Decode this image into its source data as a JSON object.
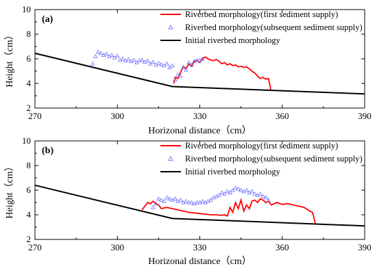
{
  "chart_data": [
    {
      "type": "line",
      "panel_label": "(a)",
      "xlabel": "Horizonal distance（cm）",
      "ylabel": "Height（cm）",
      "xlim": [
        270,
        390
      ],
      "ylim": [
        2,
        10
      ],
      "xticks": [
        270,
        300,
        330,
        360,
        390
      ],
      "yticks": [
        2,
        4,
        6,
        8,
        10
      ],
      "legend_position": "top-right",
      "series": [
        {
          "name": "Riverbed morphology(first sediment supply)",
          "style": "line",
          "color": "#ff0000",
          "x": [
            320.5,
            321,
            322,
            323,
            324,
            325,
            326,
            327,
            328,
            329,
            330,
            331,
            332,
            333,
            334,
            335,
            336,
            337,
            338,
            339,
            340,
            341,
            342,
            343,
            344,
            345,
            346,
            347,
            348,
            349,
            350,
            351,
            352,
            353,
            354,
            355,
            355.5,
            355.8
          ],
          "y": [
            4.0,
            4.5,
            4.4,
            4.9,
            5.4,
            5.2,
            5.6,
            5.4,
            5.8,
            5.9,
            5.7,
            6.0,
            6.15,
            6.0,
            5.9,
            5.85,
            5.95,
            5.8,
            5.6,
            5.7,
            5.5,
            5.6,
            5.45,
            5.5,
            5.35,
            5.4,
            5.3,
            5.35,
            5.2,
            5.0,
            4.85,
            4.6,
            4.4,
            4.5,
            4.35,
            4.4,
            3.9,
            3.5
          ]
        },
        {
          "name": "Riverbed morphology(subsequent sediment supply)",
          "style": "triangle-markers",
          "color": "#7070ff",
          "x": [
            291,
            292,
            293,
            294,
            295,
            296,
            297,
            298,
            299,
            300,
            301,
            302,
            303,
            304,
            305,
            306,
            307,
            308,
            309,
            310,
            311,
            312,
            313,
            314,
            315,
            316,
            317,
            318,
            319,
            320,
            321,
            322,
            323,
            324,
            325,
            326,
            327,
            328,
            329,
            330,
            331
          ],
          "y": [
            5.6,
            6.2,
            6.55,
            6.45,
            6.3,
            6.4,
            6.2,
            6.3,
            6.1,
            6.25,
            5.9,
            6.0,
            5.85,
            5.95,
            5.8,
            5.9,
            5.7,
            5.85,
            5.9,
            5.75,
            5.85,
            5.6,
            5.75,
            5.5,
            5.65,
            5.55,
            5.45,
            5.6,
            5.3,
            5.45,
            4.3,
            4.7,
            4.6,
            5.3,
            5.1,
            5.7,
            5.5,
            5.8,
            5.85,
            5.9,
            6.0
          ]
        },
        {
          "name": "Initial riverbed morphology",
          "style": "line",
          "color": "#000000",
          "x": [
            270,
            320,
            390
          ],
          "y": [
            6.45,
            3.75,
            3.15
          ]
        }
      ]
    },
    {
      "type": "line",
      "panel_label": "(b)",
      "xlabel": "Horizonal distance（cm）",
      "ylabel": "Height（cm）",
      "xlim": [
        270,
        390
      ],
      "ylim": [
        2,
        10
      ],
      "xticks": [
        270,
        300,
        330,
        360,
        390
      ],
      "yticks": [
        2,
        4,
        6,
        8,
        10
      ],
      "legend_position": "top-right",
      "series": [
        {
          "name": "Riverbed morphology(first sediment supply)",
          "style": "line",
          "color": "#ff0000",
          "x": [
            309,
            310,
            311,
            312,
            313,
            314,
            315,
            316,
            318,
            320,
            322,
            324,
            326,
            328,
            330,
            332,
            334,
            336,
            338,
            339,
            340,
            341,
            342,
            343,
            344,
            345,
            346,
            347,
            348,
            349,
            350,
            351,
            352,
            353,
            354,
            355,
            356,
            357,
            358,
            360,
            362,
            364,
            366,
            368,
            370,
            371,
            371.5,
            372
          ],
          "y": [
            4.4,
            4.7,
            5.0,
            4.9,
            5.1,
            4.9,
            4.8,
            4.5,
            4.6,
            4.5,
            4.4,
            4.3,
            4.2,
            4.15,
            4.1,
            4.05,
            4.0,
            4.0,
            3.95,
            4.0,
            3.9,
            4.6,
            4.2,
            5.0,
            4.5,
            5.2,
            4.3,
            4.8,
            4.5,
            5.1,
            5.2,
            5.0,
            5.3,
            5.2,
            5.0,
            5.1,
            4.8,
            4.9,
            5.0,
            4.85,
            4.9,
            4.8,
            4.7,
            4.6,
            4.3,
            4.2,
            3.8,
            3.3
          ]
        },
        {
          "name": "Riverbed morphology(subsequent sediment supply)",
          "style": "triangle-markers",
          "color": "#7070ff",
          "x": [
            313,
            314,
            315,
            316,
            317,
            318,
            319,
            320,
            321,
            322,
            323,
            324,
            325,
            326,
            327,
            328,
            329,
            330,
            331,
            332,
            333,
            334,
            335,
            336,
            337,
            338,
            339,
            340,
            341,
            342,
            343,
            344,
            345,
            346,
            347,
            348,
            349,
            350,
            351,
            352,
            353,
            354,
            355
          ],
          "y": [
            4.6,
            4.9,
            5.3,
            5.2,
            5.1,
            5.4,
            5.3,
            5.2,
            5.3,
            5.1,
            5.2,
            5.0,
            5.1,
            5.0,
            5.0,
            4.9,
            5.0,
            5.0,
            5.1,
            5.0,
            5.1,
            5.2,
            5.4,
            5.5,
            5.6,
            5.8,
            5.7,
            5.9,
            5.8,
            6.0,
            6.2,
            6.1,
            6.0,
            5.9,
            6.0,
            5.8,
            5.9,
            5.7,
            5.6,
            5.7,
            5.5,
            5.4,
            5.2
          ]
        },
        {
          "name": "Initial riverbed morphology",
          "style": "line",
          "color": "#000000",
          "x": [
            270,
            320,
            390
          ],
          "y": [
            6.4,
            3.7,
            3.1
          ]
        }
      ]
    }
  ]
}
